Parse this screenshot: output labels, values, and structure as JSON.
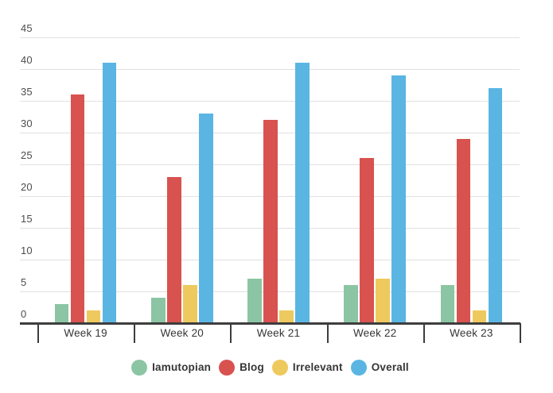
{
  "chart_data": {
    "type": "bar",
    "categories": [
      "Week 19",
      "Week 20",
      "Week 21",
      "Week 22",
      "Week 23"
    ],
    "series": [
      {
        "name": "Iamutopian",
        "color": "#8cc5a3",
        "values": [
          3,
          4,
          7,
          6,
          6
        ]
      },
      {
        "name": "Blog",
        "color": "#d8524f",
        "values": [
          36,
          23,
          32,
          26,
          29
        ]
      },
      {
        "name": "Irrelevant",
        "color": "#eec95e",
        "values": [
          2,
          6,
          2,
          7,
          2
        ]
      },
      {
        "name": "Overall",
        "color": "#5ab5e2",
        "values": [
          41,
          33,
          41,
          39,
          37
        ]
      }
    ],
    "xlabel": "",
    "ylabel": "",
    "ylim": [
      0,
      45
    ],
    "yticks": [
      0,
      5,
      10,
      15,
      20,
      25,
      30,
      35,
      40,
      45
    ],
    "grid": true,
    "legend_position": "bottom",
    "legend": [
      "Iamutopian",
      "Blog",
      "Irrelevant",
      "Overall"
    ]
  },
  "colors": {
    "background": "#ffffff",
    "gridline": "#e1e1e1",
    "baseline": "#3d3d3d",
    "tick": "#3d3d3d",
    "y_label_text": "#4d4d4d",
    "x_label_text": "#363636",
    "legend_text": "#363636"
  }
}
